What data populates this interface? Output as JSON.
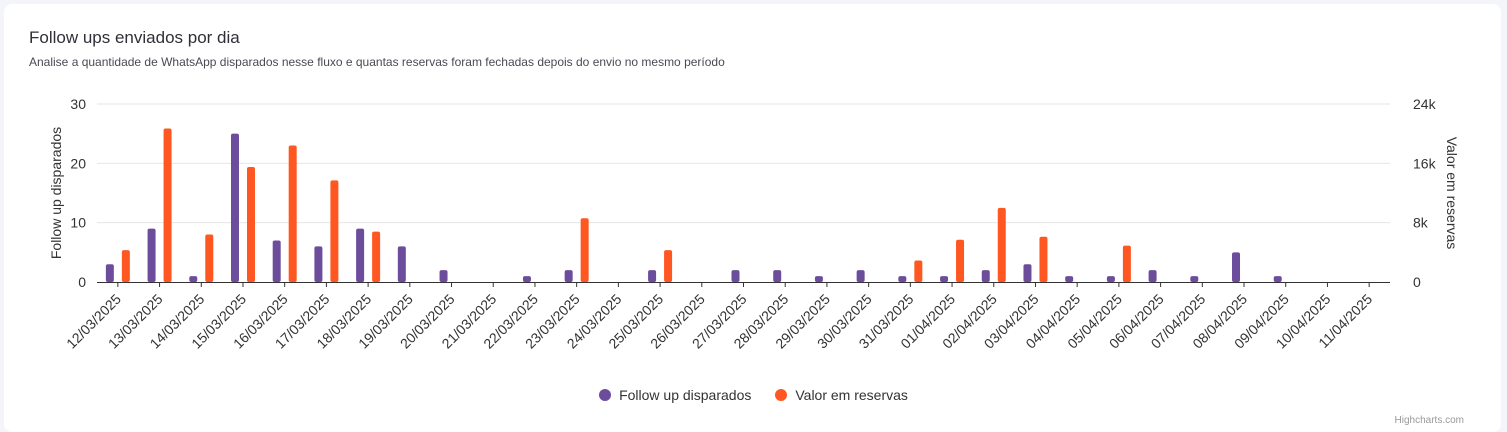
{
  "header": {
    "title": "Follow ups enviados por dia",
    "subtitle": "Analise a quantidade de WhatsApp disparados nesse fluxo e quantas reservas foram fechadas depois do envio no mesmo período"
  },
  "credits": "Highcharts.com",
  "chart_data": {
    "type": "bar",
    "categories": [
      "12/03/2025",
      "13/03/2025",
      "14/03/2025",
      "15/03/2025",
      "16/03/2025",
      "17/03/2025",
      "18/03/2025",
      "19/03/2025",
      "20/03/2025",
      "21/03/2025",
      "22/03/2025",
      "23/03/2025",
      "24/03/2025",
      "25/03/2025",
      "26/03/2025",
      "27/03/2025",
      "28/03/2025",
      "29/03/2025",
      "30/03/2025",
      "31/03/2025",
      "01/04/2025",
      "02/04/2025",
      "03/04/2025",
      "04/04/2025",
      "05/04/2025",
      "06/04/2025",
      "07/04/2025",
      "08/04/2025",
      "09/04/2025",
      "10/04/2025",
      "11/04/2025"
    ],
    "series": [
      {
        "name": "Follow up disparados",
        "color": "#6c4d9c",
        "axis": "left",
        "values": [
          3,
          9,
          1,
          25,
          7,
          6,
          9,
          6,
          2,
          0,
          1,
          2,
          0,
          2,
          0,
          2,
          2,
          1,
          2,
          1,
          1,
          2,
          3,
          1,
          1,
          2,
          1,
          5,
          1,
          0,
          0
        ]
      },
      {
        "name": "Valor em reservas",
        "color": "#ff5722",
        "axis": "right",
        "values": [
          4300,
          20700,
          6400,
          15500,
          18400,
          13700,
          6800,
          0,
          0,
          0,
          0,
          8600,
          0,
          4300,
          0,
          0,
          0,
          0,
          0,
          2900,
          5700,
          10000,
          6100,
          0,
          4900,
          0,
          0,
          0,
          0,
          0,
          0
        ]
      }
    ],
    "ylabel": "Follow up disparados",
    "ylim": [
      0,
      30
    ],
    "yticks": [
      "0",
      "10",
      "20",
      "30"
    ],
    "y2label": "Valor em reservas",
    "y2lim": [
      0,
      24000
    ],
    "y2ticks": [
      "0",
      "8k",
      "16k",
      "24k"
    ],
    "grid": true,
    "legend_position": "bottom-center"
  }
}
